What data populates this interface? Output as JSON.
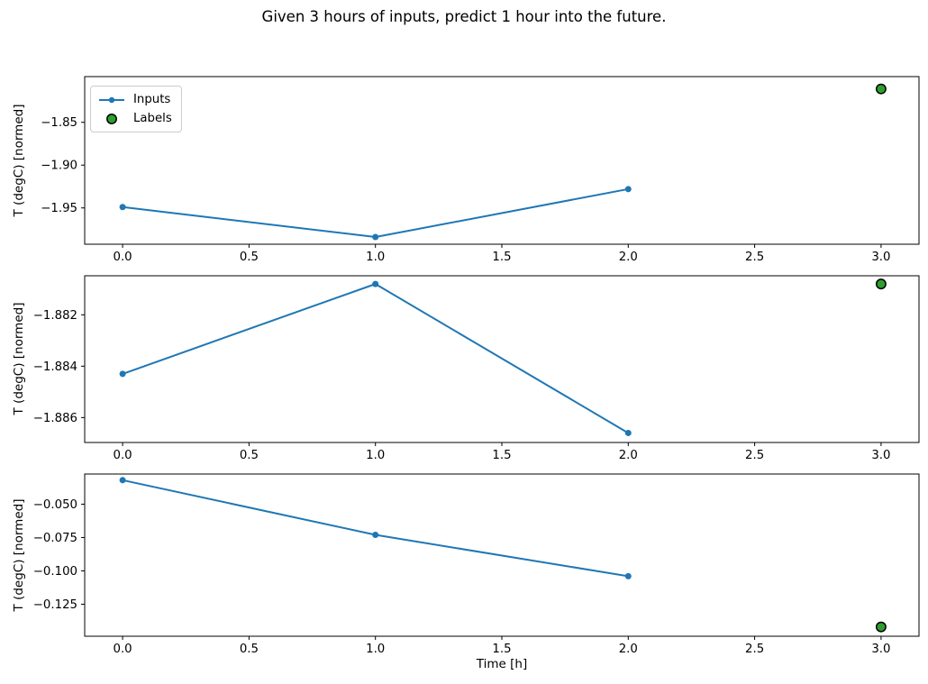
{
  "figure": {
    "title": "Given 3 hours of inputs, predict 1 hour into the future.",
    "background": "#ffffff"
  },
  "legend": {
    "visible": true,
    "location": "upper left"
  },
  "colors": {
    "inputs_line": "#1f77b4",
    "labels_marker": "#2ca02c",
    "marker_edge": "#000000",
    "axes_edge": "#000000"
  },
  "chart_data": [
    {
      "type": "line",
      "ylabel": "T (degC) [normed]",
      "xlabel": "",
      "xlim": [
        -0.15,
        3.15
      ],
      "ylim": [
        -1.9924,
        -1.7966
      ],
      "grid": false,
      "xticks": {
        "values": [
          0,
          0.5,
          1,
          1.5,
          2,
          2.5,
          3
        ],
        "labels": [
          "0.0",
          "0.5",
          "1.0",
          "1.5",
          "2.0",
          "2.5",
          "3.0"
        ]
      },
      "yticks": {
        "values": [
          -1.85,
          -1.9,
          -1.95
        ],
        "labels": [
          "−1.85",
          "−1.90",
          "−1.95"
        ]
      },
      "series": [
        {
          "name": "Inputs",
          "type": "line-markers",
          "color": "#1f77b4",
          "points": [
            [
              0,
              -1.949
            ],
            [
              1,
              -1.984
            ],
            [
              2,
              -1.928
            ]
          ]
        },
        {
          "name": "Labels",
          "type": "scatter",
          "color": "#2ca02c",
          "edge_color": "#000000",
          "points": [
            [
              3,
              -1.811
            ]
          ]
        }
      ],
      "legend": {
        "visible": true,
        "entries": [
          "Inputs",
          "Labels"
        ]
      }
    },
    {
      "type": "line",
      "ylabel": "T (degC) [normed]",
      "xlabel": "",
      "xlim": [
        -0.15,
        3.15
      ],
      "ylim": [
        -1.88697,
        -1.88048
      ],
      "grid": false,
      "xticks": {
        "values": [
          0,
          0.5,
          1,
          1.5,
          2,
          2.5,
          3
        ],
        "labels": [
          "0.0",
          "0.5",
          "1.0",
          "1.5",
          "2.0",
          "2.5",
          "3.0"
        ]
      },
      "yticks": {
        "values": [
          -1.882,
          -1.884,
          -1.886
        ],
        "labels": [
          "−1.882",
          "−1.884",
          "−1.886"
        ]
      },
      "series": [
        {
          "name": "Inputs",
          "type": "line-markers",
          "color": "#1f77b4",
          "points": [
            [
              0,
              -1.8843
            ],
            [
              1,
              -1.8808
            ],
            [
              2,
              -1.8866
            ]
          ]
        },
        {
          "name": "Labels",
          "type": "scatter",
          "color": "#2ca02c",
          "edge_color": "#000000",
          "points": [
            [
              3,
              -1.8808
            ]
          ]
        }
      ],
      "legend": {
        "visible": false
      }
    },
    {
      "type": "line",
      "ylabel": "T (degC) [normed]",
      "xlabel": "Time [h]",
      "xlim": [
        -0.15,
        3.15
      ],
      "ylim": [
        -0.149,
        -0.0274
      ],
      "grid": false,
      "xticks": {
        "values": [
          0,
          0.5,
          1,
          1.5,
          2,
          2.5,
          3
        ],
        "labels": [
          "0.0",
          "0.5",
          "1.0",
          "1.5",
          "2.0",
          "2.5",
          "3.0"
        ]
      },
      "yticks": {
        "values": [
          -0.05,
          -0.075,
          -0.1,
          -0.125
        ],
        "labels": [
          "−0.050",
          "−0.075",
          "−0.100",
          "−0.125"
        ]
      },
      "series": [
        {
          "name": "Inputs",
          "type": "line-markers",
          "color": "#1f77b4",
          "points": [
            [
              0,
              -0.032
            ],
            [
              1,
              -0.073
            ],
            [
              2,
              -0.104
            ]
          ]
        },
        {
          "name": "Labels",
          "type": "scatter",
          "color": "#2ca02c",
          "edge_color": "#000000",
          "points": [
            [
              3,
              -0.142
            ]
          ]
        }
      ],
      "legend": {
        "visible": false
      }
    }
  ]
}
